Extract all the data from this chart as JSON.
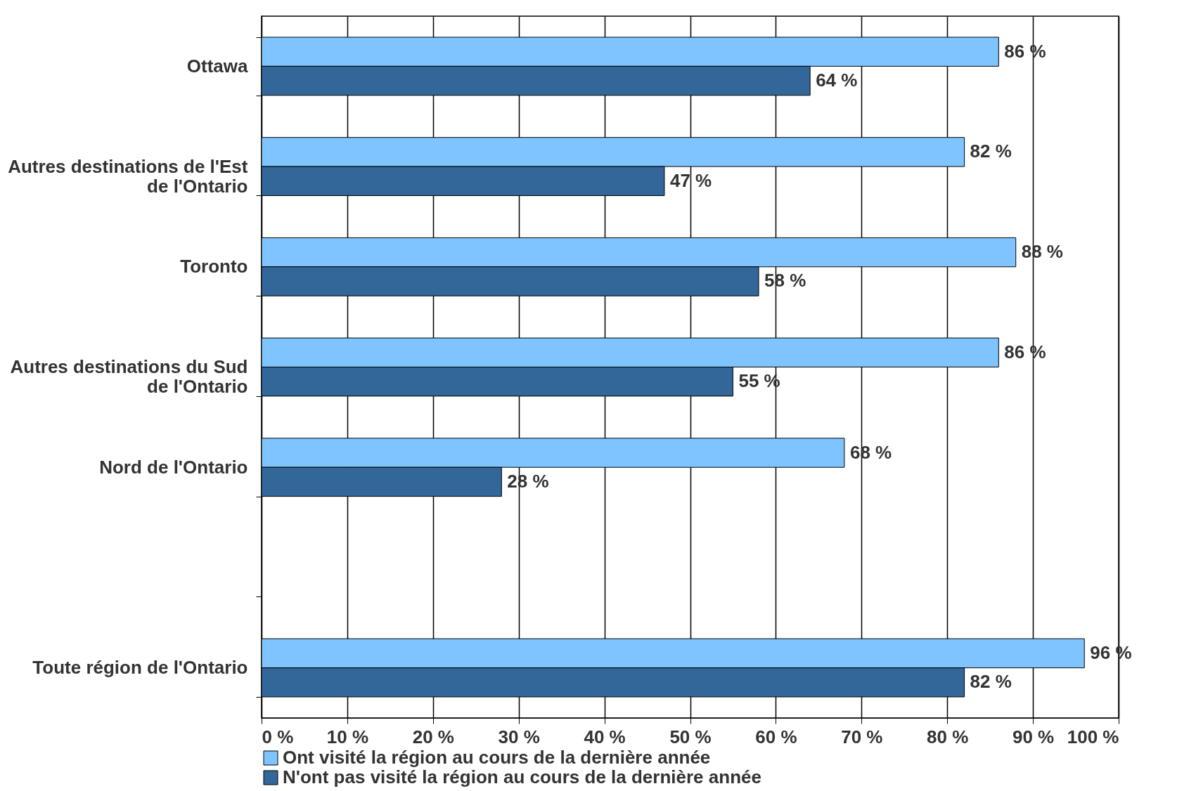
{
  "chart_data": {
    "type": "bar",
    "orientation": "horizontal",
    "categories": [
      "Ottawa",
      "Autres destinations de l'Est de l'Ontario",
      "Toronto",
      "Autres destinations du Sud de l'Ontario",
      "Nord de l'Ontario",
      null,
      "Toute région de l'Ontario"
    ],
    "series": [
      {
        "name": "Ont visité la région au cours de la dernière année",
        "color": "#80c4ff",
        "values": [
          86,
          82,
          88,
          86,
          68,
          null,
          96
        ],
        "value_labels": [
          "86 %",
          "82 %",
          "88 %",
          "86 %",
          "68 %",
          null,
          "96 %"
        ]
      },
      {
        "name": "N'ont pas visité la région au cours de la dernière année",
        "color": "#336699",
        "values": [
          64,
          47,
          58,
          55,
          28,
          null,
          82
        ],
        "value_labels": [
          "64 %",
          "47 %",
          "58 %",
          "55 %",
          "28 %",
          null,
          "82 %"
        ]
      }
    ],
    "xlim": [
      0,
      100
    ],
    "xticks": [
      {
        "value": 0,
        "label": "0 %"
      },
      {
        "value": 10,
        "label": "10 %"
      },
      {
        "value": 20,
        "label": "20 %"
      },
      {
        "value": 30,
        "label": "30 %"
      },
      {
        "value": 40,
        "label": "40 %"
      },
      {
        "value": 50,
        "label": "50 %"
      },
      {
        "value": 60,
        "label": "60 %"
      },
      {
        "value": 70,
        "label": "70 %"
      },
      {
        "value": 80,
        "label": "80 %"
      },
      {
        "value": 90,
        "label": "90 %"
      },
      {
        "value": 100,
        "label": "100 %"
      }
    ],
    "grid": "x",
    "legend": "bottom"
  }
}
